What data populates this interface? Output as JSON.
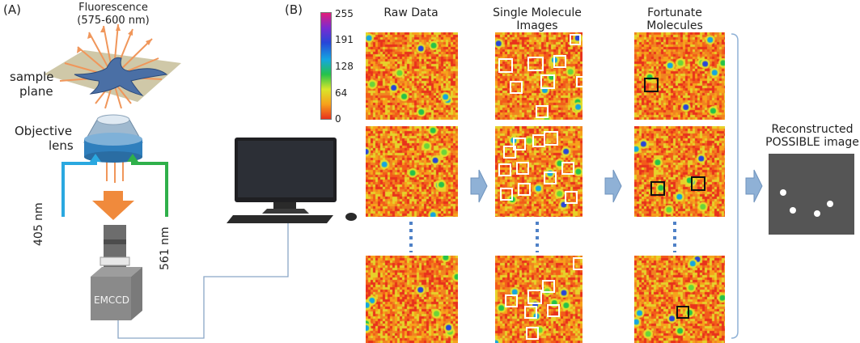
{
  "panel_a": {
    "label": "(A)",
    "fluorescence_title": "Fluorescence",
    "fluorescence_range": "(575-600 nm)",
    "sample_plane_line1": "sample",
    "sample_plane_line2": "plane",
    "objective_line1": "Objective",
    "objective_line2": "lens",
    "laser_405": "405 nm",
    "laser_561": "561 nm",
    "camera_label": "EMCCD"
  },
  "panel_b": {
    "label": "(B)",
    "colorbar_ticks": [
      "255",
      "191",
      "128",
      "64",
      "0"
    ],
    "col_raw": "Raw Data",
    "col_single_line1": "Single Molecule",
    "col_single_line2": "Images",
    "col_fortunate_line1": "Fortunate",
    "col_fortunate_line2": "Molecules",
    "reconstructed_line1": "Reconstructed",
    "reconstructed_line2": "POSSIBLE image"
  },
  "colors": {
    "laser_405": "#2aa8e0",
    "laser_561": "#2fb04a",
    "emission": "#f0965a",
    "arrow_blue": "#8fb1d6",
    "dotted": "#4f81c7"
  }
}
